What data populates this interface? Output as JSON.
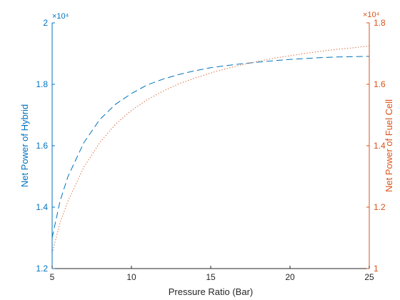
{
  "chart_data": {
    "type": "line",
    "xlabel": "Pressure Ratio (Bar)",
    "xlim": [
      5,
      25
    ],
    "x_ticks": [
      5,
      10,
      15,
      20,
      25
    ],
    "x_tick_labels": [
      "5",
      "10",
      "15",
      "20",
      "25"
    ],
    "axes": {
      "left": {
        "label": "Net Power of Hybrid",
        "exponent_label": "×10⁴",
        "ylim": [
          12000,
          20000
        ],
        "ticks": [
          12000,
          14000,
          16000,
          18000,
          20000
        ],
        "tick_labels": [
          "1.2",
          "1.4",
          "1.6",
          "1.8",
          "2"
        ],
        "color": "#0072BD"
      },
      "right": {
        "label": "Net Power of Fuel Cell",
        "exponent_label": "×10⁴",
        "ylim": [
          10000,
          18000
        ],
        "ticks": [
          10000,
          12000,
          14000,
          16000,
          18000
        ],
        "tick_labels": [
          "1",
          "1.2",
          "1.4",
          "1.6",
          "1.8"
        ],
        "color": "#D95319"
      }
    },
    "series": [
      {
        "axis": "left",
        "style": "dashed",
        "color": "#0072BD",
        "x": [
          5,
          5.5,
          6,
          7,
          8,
          9,
          10,
          11,
          12,
          13,
          14,
          15,
          16,
          17,
          18,
          19,
          20,
          21,
          22,
          23,
          24,
          25
        ],
        "y": [
          13000,
          14200,
          15000,
          16100,
          16850,
          17350,
          17700,
          17980,
          18170,
          18320,
          18440,
          18540,
          18610,
          18670,
          18720,
          18770,
          18810,
          18840,
          18870,
          18890,
          18900,
          18910
        ]
      },
      {
        "axis": "right",
        "style": "dotted",
        "color": "#D95319",
        "x": [
          5,
          5.5,
          6,
          7,
          8,
          9,
          10,
          11,
          12,
          13,
          14,
          15,
          16,
          17,
          18,
          19,
          20,
          21,
          22,
          23,
          24,
          25
        ],
        "y": [
          10500,
          11500,
          12200,
          13300,
          14100,
          14700,
          15150,
          15500,
          15780,
          16020,
          16200,
          16370,
          16510,
          16640,
          16750,
          16850,
          16930,
          17010,
          17080,
          17140,
          17190,
          17250
        ]
      }
    ]
  }
}
